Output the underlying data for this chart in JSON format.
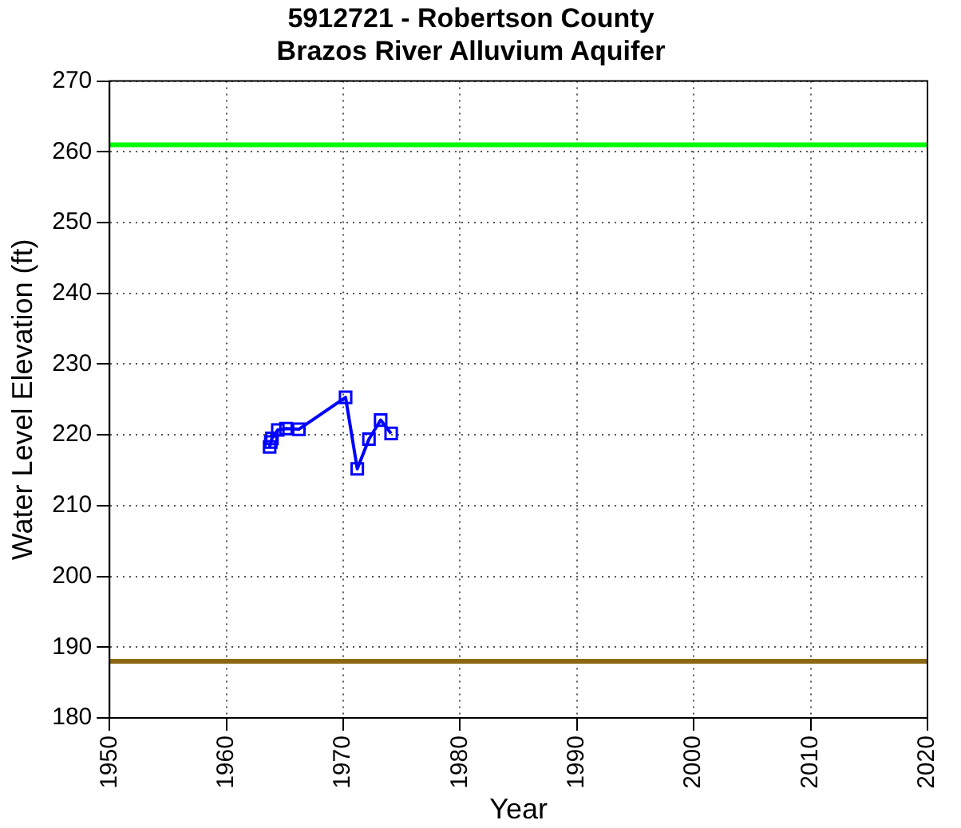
{
  "chart_data": {
    "type": "line",
    "title": "5912721 - Robertson County\nBrazos River Alluvium Aquifer",
    "xlabel": "Year",
    "ylabel": "Water Level Elevation (ft)",
    "x": [
      1963.7,
      1963.8,
      1963.9,
      1964.4,
      1965.1,
      1966.2,
      1970.2,
      1971.2,
      1972.2,
      1973.2,
      1974.1
    ],
    "series": [
      {
        "color": "#0000ff",
        "values": [
          218.3,
          219.0,
          219.5,
          220.7,
          220.9,
          220.8,
          225.3,
          215.2,
          219.4,
          222.1,
          220.2
        ]
      }
    ],
    "xlim": [
      1950,
      2020
    ],
    "xticks": [
      1950,
      1960,
      1970,
      1980,
      1990,
      2000,
      2010,
      2020
    ],
    "ylim": [
      180,
      270
    ],
    "yticks": [
      180,
      190,
      200,
      210,
      220,
      230,
      240,
      250,
      260,
      270
    ],
    "ref_lines": [
      {
        "axis": "y",
        "value": 261,
        "color": "#00ff00"
      },
      {
        "axis": "y",
        "value": 188,
        "color": "#8b6914"
      }
    ],
    "grid": true,
    "legend": false,
    "marker": "square",
    "line_style": "solid"
  }
}
